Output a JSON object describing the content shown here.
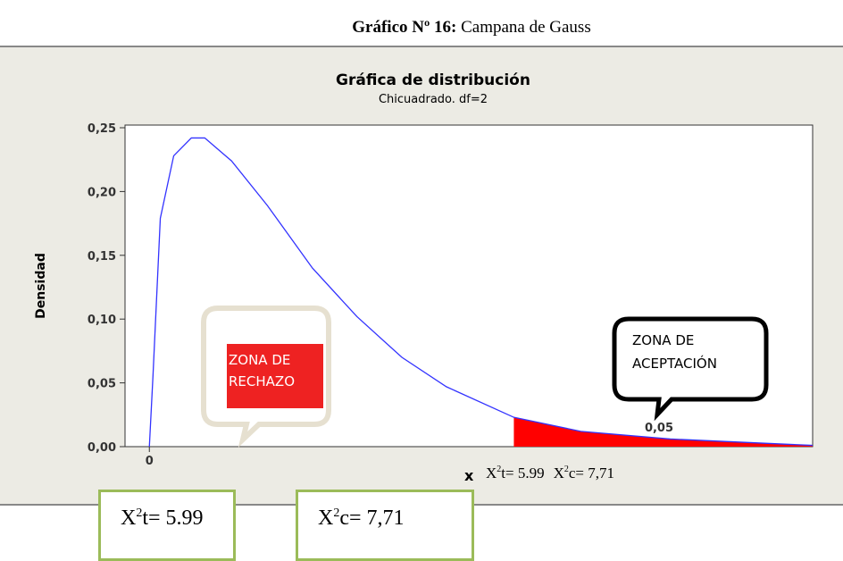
{
  "caption": {
    "bold": "Gráfico Nº 16:",
    "text": "Campana de Gauss"
  },
  "chart_data": {
    "type": "line",
    "title": "Gráfica de distribución",
    "subtitle": "Chicuadrado. df=2",
    "ylabel": "Densidad",
    "xlabel": "x",
    "x": [
      0,
      0.06,
      0.18,
      0.4,
      0.69,
      0.91,
      1.35,
      1.94,
      2.68,
      3.41,
      4.15,
      4.88,
      5.99,
      7.09,
      8.56,
      10.9
    ],
    "series": [
      {
        "color": "#3333ff",
        "values": [
          0,
          0.056,
          0.179,
          0.228,
          0.242,
          0.242,
          0.224,
          0.189,
          0.14,
          0.102,
          0.07,
          0.047,
          0.023,
          0.012,
          0.006,
          0.001
        ]
      }
    ],
    "xlim": [
      -0.4,
      10.9
    ],
    "ylim": [
      0,
      0.25
    ],
    "xticks": [
      0
    ],
    "yticks": [
      {
        "value": 0,
        "label": "0,00"
      },
      {
        "value": 0.05,
        "label": "0,05"
      },
      {
        "value": 0.1,
        "label": "0,10"
      },
      {
        "value": 0.15,
        "label": "0,15"
      },
      {
        "value": 0.2,
        "label": "0,20"
      },
      {
        "value": 0.25,
        "label": "0,25"
      }
    ],
    "shaded_region": {
      "from": 5.99,
      "color": "#ff0000"
    },
    "annotations": {
      "rechazo": [
        "ZONA DE",
        "RECHAZO"
      ],
      "aceptacion": [
        "ZONA DE",
        "ACEPTACIÓN"
      ],
      "alpha": "0,05",
      "critical": {
        "b1": "X",
        "s1": "2",
        "r1": "t= 5.99",
        "b2": "X",
        "s2": "2",
        "r2": "c= 7,71"
      }
    }
  },
  "boxes": [
    {
      "base": "X",
      "sup": "2",
      "rest": "t= 5.99"
    },
    {
      "base": "X",
      "sup": "2",
      "rest": "c= 7,71"
    }
  ]
}
